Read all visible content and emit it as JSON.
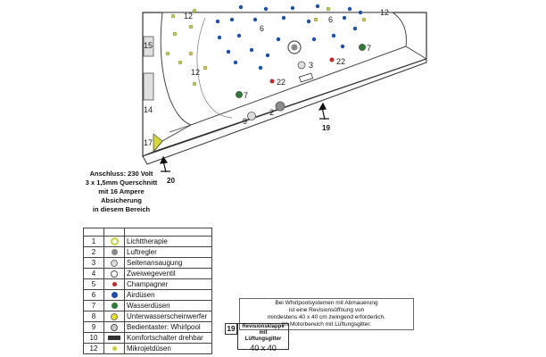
{
  "diagram": {
    "labels": {
      "n12a": "12",
      "n12b": "12",
      "n12c": "12",
      "n6a": "6",
      "n6b": "6",
      "n15": "15",
      "n14": "14",
      "n17": "17",
      "n3": "3",
      "n22a": "22",
      "n22b": "22",
      "n7a": "7",
      "n7b": "7",
      "n9": "9",
      "n2": "2",
      "n19": "19",
      "n20": "20"
    },
    "colors": {
      "airjet": "#1f4fa8",
      "microjet": "#c9d13a",
      "waterjet": "#2e7d32",
      "champagne": "#c62828",
      "outline": "#333333",
      "pillow": "#e0e0e0"
    }
  },
  "anschluss": {
    "line1": "Anschluss: 230 Volt",
    "line2": "3 x 1,5mm Querschnitt",
    "line3": "mit 16 Ampere",
    "line4": "Absicherung",
    "line5": "in diesem Bereich"
  },
  "legend": {
    "rows": [
      {
        "num": "1",
        "icon": "lichttherapie-icon",
        "label": "Lichttherapie"
      },
      {
        "num": "2",
        "icon": "luftregler-icon",
        "label": "Luftregler"
      },
      {
        "num": "3",
        "icon": "seitenansaugung-icon",
        "label": "Seitenansaugung"
      },
      {
        "num": "4",
        "icon": "zweiwegeventil-icon",
        "label": "Zweiwegeventil"
      },
      {
        "num": "5",
        "icon": "champagner-icon",
        "label": "Champagner"
      },
      {
        "num": "6",
        "icon": "airduesen-icon",
        "label": "Airdüsen"
      },
      {
        "num": "7",
        "icon": "wasserduesen-icon",
        "label": "Wasserdüsen"
      },
      {
        "num": "8",
        "icon": "unterwasserscheinwerfer-icon",
        "label": "Unterwasserscheinwerfer"
      },
      {
        "num": "9",
        "icon": "bedientaster-icon",
        "label": "Bedientaster: Whirlpool"
      },
      {
        "num": "10",
        "icon": "komfortschalter-icon",
        "label": "Komfortschalter drehbar"
      },
      {
        "num": "12",
        "icon": "mikroduesen-icon",
        "label": "Mikrojetdüsen"
      }
    ]
  },
  "note": {
    "line1": "Bei Whirlpoolsystemen mit Abmauerung",
    "line2": "ist eine Revisionsöffnung von",
    "line3": "mindestens 40 x 40 cm zwingend erforderlich.",
    "line4": "Im Motorbereich mit Lüftungsgitter."
  },
  "revision": {
    "num": "19",
    "title1": "Revisionsklappe mit",
    "title2": "Lüftungsgitter",
    "size": "40 x 40"
  }
}
